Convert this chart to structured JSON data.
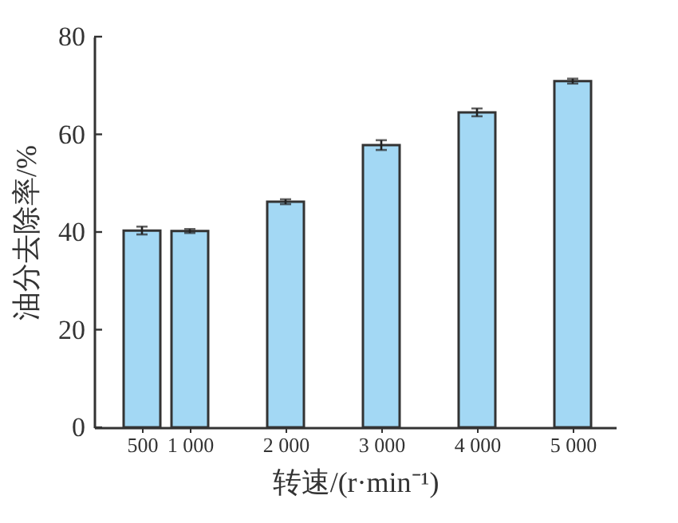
{
  "chart_data": {
    "type": "bar",
    "xlabel": "转速/(r·min⁻¹)",
    "ylabel": "油分去除率/%",
    "x": [
      500,
      1000,
      2000,
      3000,
      4000,
      5000
    ],
    "values": [
      40.3,
      40.2,
      46.2,
      57.8,
      64.5,
      70.9
    ],
    "errors": [
      0.8,
      0.4,
      0.5,
      1.0,
      0.8,
      0.5
    ],
    "color": "#a3d8f4",
    "xlim": [
      0,
      5450
    ],
    "xticks": [
      {
        "value": 500,
        "label": "500"
      },
      {
        "value": 1000,
        "label": "1 000"
      },
      {
        "value": 2000,
        "label": "2 000"
      },
      {
        "value": 3000,
        "label": "3 000"
      },
      {
        "value": 4000,
        "label": "4 000"
      },
      {
        "value": 5000,
        "label": "5 000"
      }
    ],
    "ylim": [
      0,
      80
    ],
    "yticks": [
      0,
      20,
      40,
      60,
      80
    ],
    "grid": false
  }
}
